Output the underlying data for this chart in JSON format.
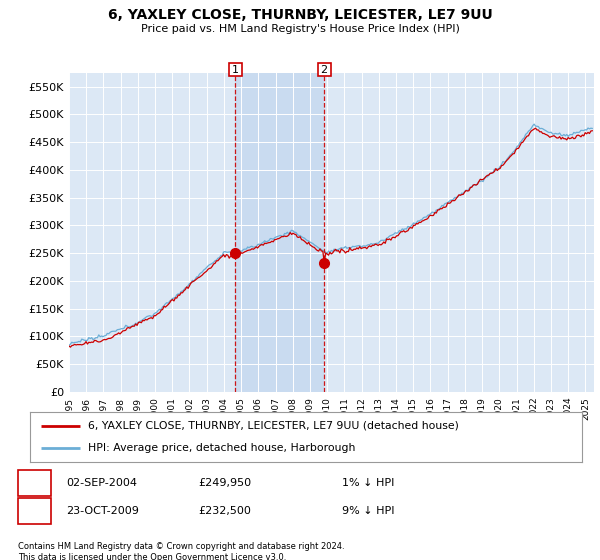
{
  "title": "6, YAXLEY CLOSE, THURNBY, LEICESTER, LE7 9UU",
  "subtitle": "Price paid vs. HM Land Registry's House Price Index (HPI)",
  "ylim": [
    0,
    575000
  ],
  "yticks": [
    0,
    50000,
    100000,
    150000,
    200000,
    250000,
    300000,
    350000,
    400000,
    450000,
    500000,
    550000
  ],
  "ytick_labels": [
    "£0",
    "£50K",
    "£100K",
    "£150K",
    "£200K",
    "£250K",
    "£300K",
    "£350K",
    "£400K",
    "£450K",
    "£500K",
    "£550K"
  ],
  "legend_line1": "6, YAXLEY CLOSE, THURNBY, LEICESTER, LE7 9UU (detached house)",
  "legend_line2": "HPI: Average price, detached house, Harborough",
  "sale1_date": "02-SEP-2004",
  "sale1_price": 249950,
  "sale1_hpi_pct": "1% ↓ HPI",
  "sale1_year": 2004.67,
  "sale2_date": "23-OCT-2009",
  "sale2_price": 232500,
  "sale2_hpi_pct": "9% ↓ HPI",
  "sale2_year": 2009.82,
  "footer1": "Contains HM Land Registry data © Crown copyright and database right 2024.",
  "footer2": "This data is licensed under the Open Government Licence v3.0.",
  "hpi_color": "#6baed6",
  "price_color": "#cc0000",
  "bg_color": "#dce8f5",
  "shade_color": "#c5d8ef",
  "marker_box_color": "#cc0000",
  "grid_color": "#cccccc",
  "xlim_start": 1995.0,
  "xlim_end": 2025.5
}
